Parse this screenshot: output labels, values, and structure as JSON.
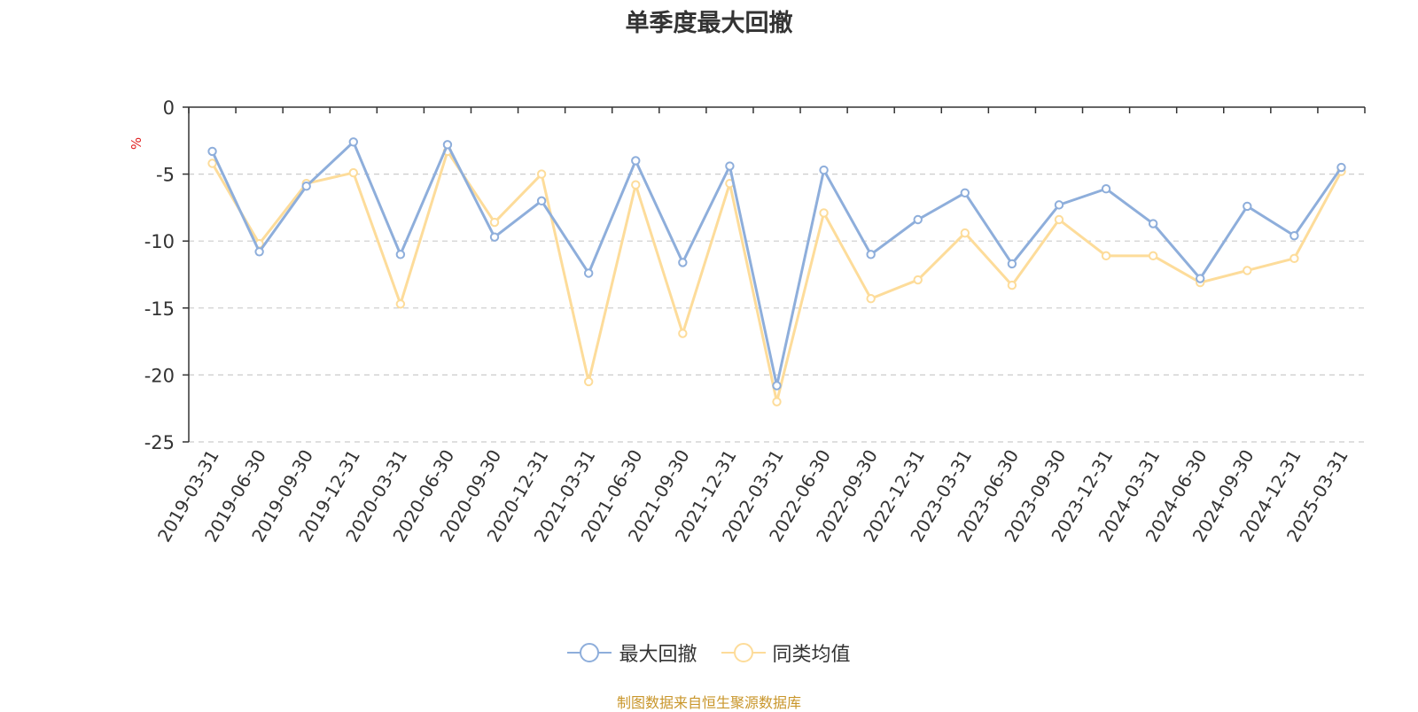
{
  "title": "单季度最大回撤",
  "source_note": "制图数据来自恒生聚源数据库",
  "colors": {
    "series1": "#8eaedb",
    "series2": "#fddc9a",
    "ylabel": "#e02020",
    "axis": "#333333",
    "grid": "#cccccc"
  },
  "chart_data": {
    "type": "line",
    "title": "单季度最大回撤",
    "xlabel": "",
    "ylabel": "%",
    "ylim": [
      -25,
      0
    ],
    "yticks": [
      0,
      -5,
      -10,
      -15,
      -20,
      -25
    ],
    "grid": "horizontal dashed",
    "legend_position": "bottom",
    "categories": [
      "2019-03-31",
      "2019-06-30",
      "2019-09-30",
      "2019-12-31",
      "2020-03-31",
      "2020-06-30",
      "2020-09-30",
      "2020-12-31",
      "2021-03-31",
      "2021-06-30",
      "2021-09-30",
      "2021-12-31",
      "2022-03-31",
      "2022-06-30",
      "2022-09-30",
      "2022-12-31",
      "2023-03-31",
      "2023-06-30",
      "2023-09-30",
      "2023-12-31",
      "2024-03-31",
      "2024-06-30",
      "2024-09-30",
      "2024-12-31",
      "2025-03-31"
    ],
    "series": [
      {
        "name": "最大回撤",
        "values": [
          -3.3,
          -10.8,
          -5.9,
          -2.6,
          -11.0,
          -2.8,
          -9.7,
          -7.0,
          -12.4,
          -4.0,
          -11.6,
          -4.4,
          -20.8,
          -4.7,
          -11.0,
          -8.4,
          -6.4,
          -11.7,
          -7.3,
          -6.1,
          -8.7,
          -12.8,
          -7.4,
          -9.6,
          -4.5
        ]
      },
      {
        "name": "同类均值",
        "values": [
          -4.2,
          -10.2,
          -5.7,
          -4.9,
          -14.7,
          -3.3,
          -8.6,
          -5.0,
          -20.5,
          -5.8,
          -16.9,
          -5.7,
          -22.0,
          -7.9,
          -14.3,
          -12.9,
          -9.4,
          -13.3,
          -8.4,
          -11.1,
          -11.1,
          -13.1,
          -12.2,
          -11.3,
          -4.8
        ]
      }
    ]
  }
}
